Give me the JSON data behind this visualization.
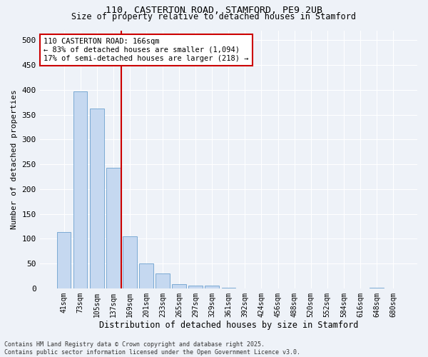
{
  "title1": "110, CASTERTON ROAD, STAMFORD, PE9 2UB",
  "title2": "Size of property relative to detached houses in Stamford",
  "xlabel": "Distribution of detached houses by size in Stamford",
  "ylabel": "Number of detached properties",
  "categories": [
    "41sqm",
    "73sqm",
    "105sqm",
    "137sqm",
    "169sqm",
    "201sqm",
    "233sqm",
    "265sqm",
    "297sqm",
    "329sqm",
    "361sqm",
    "392sqm",
    "424sqm",
    "456sqm",
    "488sqm",
    "520sqm",
    "552sqm",
    "584sqm",
    "616sqm",
    "648sqm",
    "680sqm"
  ],
  "values": [
    113,
    397,
    363,
    243,
    105,
    50,
    30,
    9,
    6,
    6,
    1,
    0,
    0,
    0,
    0,
    0,
    0,
    0,
    0,
    1,
    0
  ],
  "bar_color": "#c5d8f0",
  "bar_edge_color": "#7baad4",
  "vline_color": "#cc0000",
  "annotation_text": "110 CASTERTON ROAD: 166sqm\n← 83% of detached houses are smaller (1,094)\n17% of semi-detached houses are larger (218) →",
  "annotation_box_color": "white",
  "annotation_box_edge": "#cc0000",
  "ylim": [
    0,
    520
  ],
  "yticks": [
    0,
    50,
    100,
    150,
    200,
    250,
    300,
    350,
    400,
    450,
    500
  ],
  "bg_color": "#eef2f8",
  "grid_color": "#ffffff",
  "footnote": "Contains HM Land Registry data © Crown copyright and database right 2025.\nContains public sector information licensed under the Open Government Licence v3.0."
}
